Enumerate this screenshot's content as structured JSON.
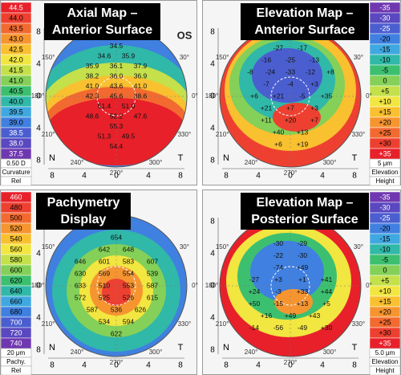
{
  "panels": [
    {
      "title": [
        "Axial Map –",
        "Anterior Surface"
      ],
      "scale": {
        "labels": [
          "44.5",
          "44.0",
          "43.5",
          "43.0",
          "42.5",
          "42.0",
          "41.5",
          "41.0",
          "40.5",
          "40.0",
          "39.5",
          "39.0",
          "38.5",
          "38.0",
          "37.5"
        ],
        "colors": [
          "#e8202a",
          "#ee4030",
          "#f26a30",
          "#f69530",
          "#f9c030",
          "#f2e640",
          "#c4e04a",
          "#84d058",
          "#3cc070",
          "#30b8a8",
          "#40a8e0",
          "#4080e0",
          "#4a5ed0",
          "#5a48c0",
          "#7038b0"
        ],
        "footer": [
          "0.50 D",
          "Curvature",
          "Rel"
        ]
      },
      "map_rows": [
        [
          "34.5"
        ],
        [
          "34.6",
          "35.9"
        ],
        [
          "35.9",
          "36.1",
          "37.9"
        ],
        [
          "38.2",
          "36.0",
          "36.9"
        ],
        [
          "41.0",
          "43.6",
          "41.0"
        ],
        [
          "42.3",
          "45.6",
          "38.6"
        ],
        [
          "51.4",
          "51.0"
        ],
        [
          "48.6",
          "52.2",
          "47.6"
        ],
        [
          "55.3"
        ],
        [
          "51.3",
          "49.5"
        ],
        [
          "54.4"
        ]
      ],
      "angles": [
        "150°",
        "180°",
        "210°",
        "240°",
        "270°",
        "300°",
        "330°",
        "0°",
        "30°"
      ],
      "x_ticks": [
        "8",
        "4",
        "0",
        "4",
        "8"
      ],
      "y_ticks": [
        "8",
        "4",
        "0",
        "4",
        "8"
      ],
      "nasal": "N",
      "temporal": "T",
      "eye": "OS"
    },
    {
      "title": [
        "Elevation Map –",
        "Anterior Surface"
      ],
      "scale": {
        "labels": [
          "-35",
          "-30",
          "-25",
          "-20",
          "-15",
          "-10",
          "-5",
          "0",
          "+5",
          "+10",
          "+15",
          "+20",
          "+25",
          "+30",
          "+35"
        ],
        "colors": [
          "#7038b0",
          "#5a48c0",
          "#4a5ed0",
          "#4080e0",
          "#40a8e0",
          "#30b8a8",
          "#3cc070",
          "#84d058",
          "#c4e04a",
          "#f2e640",
          "#f9c030",
          "#f69530",
          "#f26a30",
          "#ee4030",
          "#e8202a"
        ],
        "footer": [
          "5 μm",
          "Elevation",
          "Height"
        ]
      },
      "map_rows": [
        [
          "-27",
          "-17"
        ],
        [
          "-16",
          "-25",
          "-13"
        ],
        [
          "-8",
          "-24",
          "-33",
          "-12",
          "+8"
        ],
        [
          "-7",
          "-4",
          "+3"
        ],
        [
          "+6",
          "+21",
          "-5",
          "+35"
        ],
        [
          "+21",
          "+7",
          "+3"
        ],
        [
          "+11",
          "+20",
          "+7"
        ],
        [
          "+40",
          "+13"
        ],
        [
          "+6",
          "+19"
        ]
      ],
      "angles": [
        "150°",
        "180°",
        "210°",
        "240°",
        "270°",
        "300°",
        "330°",
        "0°",
        "30°"
      ],
      "x_ticks": [
        "8",
        "4",
        "0",
        "4",
        "8"
      ],
      "y_ticks": [
        "8",
        "4",
        "0",
        "4",
        "8"
      ],
      "nasal": "N",
      "temporal": "T"
    },
    {
      "title": [
        "Pachymetry",
        "Display"
      ],
      "scale": {
        "labels": [
          "460",
          "480",
          "500",
          "520",
          "540",
          "560",
          "580",
          "600",
          "620",
          "640",
          "660",
          "680",
          "700",
          "720",
          "740"
        ],
        "colors": [
          "#e8202a",
          "#ee4030",
          "#f26a30",
          "#f69530",
          "#f9c030",
          "#f2e640",
          "#c4e04a",
          "#84d058",
          "#3cc070",
          "#30b8a8",
          "#40a8e0",
          "#4080e0",
          "#4a5ed0",
          "#5a48c0",
          "#7038b0"
        ],
        "footer": [
          "20 μm",
          "Pachy.",
          "Rel"
        ]
      },
      "map_rows": [
        [
          "654"
        ],
        [
          "642",
          "648"
        ],
        [
          "646",
          "601",
          "583",
          "607"
        ],
        [
          "630",
          "569",
          "554",
          "539"
        ],
        [
          "633",
          "510",
          "553",
          "587"
        ],
        [
          "572",
          "525",
          "526",
          "615"
        ],
        [
          "587",
          "536",
          "626"
        ],
        [
          "534",
          "594"
        ],
        [
          "622"
        ]
      ],
      "angles": [
        "150°",
        "180°",
        "210°",
        "240°",
        "270°",
        "300°",
        "330°",
        "0°",
        "30°"
      ],
      "x_ticks": [
        "8",
        "4",
        "0",
        "4",
        "8"
      ],
      "y_ticks": [
        "8",
        "4",
        "0",
        "4",
        "8"
      ],
      "nasal": "N",
      "temporal": "T"
    },
    {
      "title": [
        "Elevation Map –",
        "Posterior Surface"
      ],
      "scale": {
        "labels": [
          "-35",
          "-30",
          "-25",
          "-20",
          "-15",
          "-10",
          "-5",
          "0",
          "+5",
          "+10",
          "+15",
          "+20",
          "+25",
          "+30",
          "+35"
        ],
        "colors": [
          "#7038b0",
          "#5a48c0",
          "#4a5ed0",
          "#4080e0",
          "#40a8e0",
          "#30b8a8",
          "#3cc070",
          "#84d058",
          "#c4e04a",
          "#f2e640",
          "#f9c030",
          "#f69530",
          "#f26a30",
          "#ee4030",
          "#e8202a"
        ],
        "footer": [
          "5.0 μm",
          "Elevation",
          "Height"
        ]
      },
      "map_rows": [
        [
          "-30",
          "-29"
        ],
        [
          "-22",
          "-30"
        ],
        [
          "-74",
          "+49"
        ],
        [
          "-27",
          "+3",
          "+1",
          "+41"
        ],
        [
          "+24",
          "-3",
          "+33",
          "+44"
        ],
        [
          "+50",
          "-15",
          "+13",
          "+5"
        ],
        [
          "+16",
          "+49",
          "+43"
        ],
        [
          "-14",
          "-56",
          "-49",
          "+30"
        ]
      ],
      "angles": [
        "150°",
        "180°",
        "210°",
        "240°",
        "270°",
        "300°",
        "330°",
        "0°",
        "30°"
      ],
      "x_ticks": [
        "8",
        "4",
        "0",
        "4",
        "8"
      ],
      "y_ticks": [
        "8",
        "4",
        "0",
        "4",
        "8"
      ],
      "nasal": "N",
      "temporal": "T"
    }
  ]
}
